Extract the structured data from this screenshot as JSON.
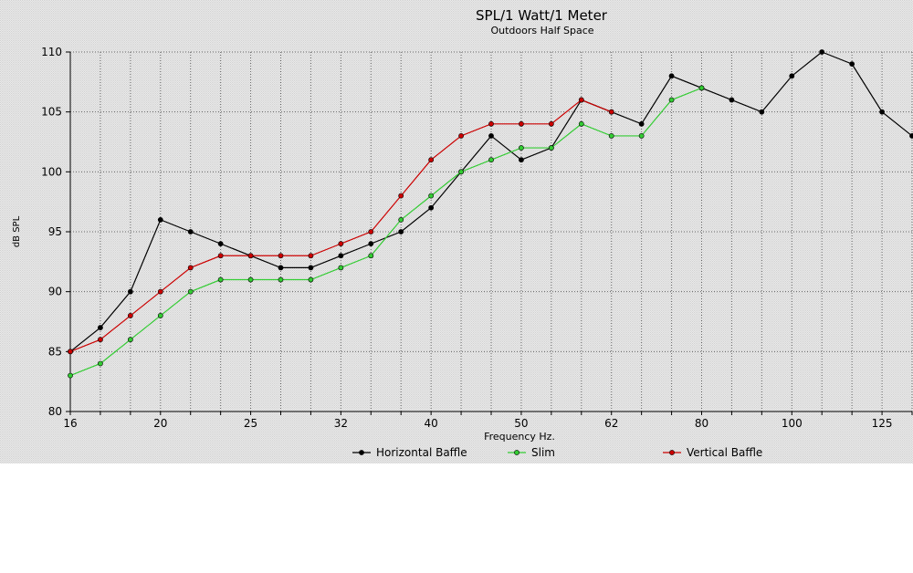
{
  "chart_data": {
    "type": "line",
    "title": "SPL/1 Watt/1 Meter",
    "subtitle": "Outdoors Half Space",
    "xlabel": "Frequency Hz.",
    "ylabel": "dB SPL",
    "ylim": [
      80,
      110
    ],
    "yticks": [
      80,
      85,
      90,
      95,
      100,
      105,
      110
    ],
    "x_tick_labels": [
      "16",
      "20",
      "25",
      "32",
      "40",
      "50",
      "62",
      "80",
      "100",
      "125"
    ],
    "x_tick_index": [
      0,
      3,
      6,
      9,
      12,
      15,
      18,
      21,
      24,
      27
    ],
    "grid": true,
    "legend_position": "bottom",
    "x": [
      "16",
      "",
      "",
      "20",
      "",
      "",
      "25",
      "",
      "",
      "32",
      "",
      "",
      "40",
      "",
      "",
      "50",
      "",
      "",
      "62",
      "",
      "",
      "80",
      "",
      "",
      "100",
      "",
      "",
      "125",
      ""
    ],
    "series": [
      {
        "name": "Horizontal Baffle",
        "color": "#000000",
        "values": [
          85,
          87,
          90,
          96,
          95,
          94,
          93,
          92,
          92,
          93,
          94,
          95,
          97,
          100,
          103,
          101,
          102,
          106,
          105,
          104,
          108,
          107,
          106,
          105,
          108,
          110,
          109,
          105,
          103
        ]
      },
      {
        "name": "Slim",
        "color": "#33cc33",
        "values": [
          83,
          84,
          86,
          88,
          90,
          91,
          91,
          91,
          91,
          92,
          93,
          96,
          98,
          100,
          101,
          102,
          102,
          104,
          103,
          103,
          106,
          107,
          null,
          null,
          null,
          null,
          null,
          null,
          null
        ]
      },
      {
        "name": "Vertical Baffle",
        "color": "#cc0000",
        "values": [
          85,
          86,
          88,
          90,
          92,
          93,
          93,
          93,
          93,
          94,
          95,
          98,
          101,
          103,
          104,
          104,
          104,
          106,
          105,
          null,
          null,
          null,
          null,
          null,
          null,
          null,
          null,
          null,
          null
        ]
      }
    ]
  },
  "colors": {
    "panel_background": "#e6e6e6",
    "grid": "#666666",
    "text": "#000000"
  }
}
